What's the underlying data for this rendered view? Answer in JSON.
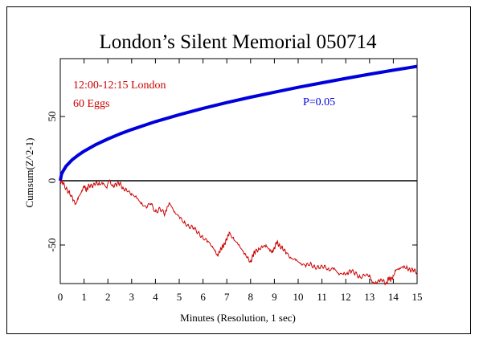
{
  "chart_data": {
    "type": "line",
    "title": "London’s Silent Memorial 050714",
    "xlabel": "Minutes (Resolution, 1 sec)",
    "ylabel": "Cumsum(Z^2-1)",
    "xlim": [
      0,
      15
    ],
    "ylim": [
      -80,
      95
    ],
    "x_ticks": [
      0,
      1,
      2,
      3,
      4,
      5,
      6,
      7,
      8,
      9,
      10,
      11,
      12,
      13,
      14,
      15
    ],
    "y_ticks": [
      -50,
      0,
      50
    ],
    "annotations": [
      "12:00-12:15 London",
      "60 Eggs",
      "P=0.05"
    ],
    "colors": {
      "cumsum": "#cc0000",
      "probability": "#0000dd",
      "zero": "#000000"
    },
    "series": [
      {
        "role": "probability envelope",
        "color": "#0000dd",
        "x": [
          0,
          0.05,
          0.1,
          0.25,
          0.5,
          0.75,
          1,
          1.5,
          2,
          2.5,
          3,
          4,
          5,
          6,
          7,
          8,
          9,
          10,
          11,
          12,
          13,
          14,
          15
        ],
        "values": [
          0,
          5,
          7,
          11.5,
          16.3,
          19.9,
          23,
          28.2,
          32.5,
          36.4,
          39.8,
          46,
          51.4,
          56.3,
          60.8,
          65,
          68.9,
          72.7,
          76.2,
          79.6,
          82.9,
          86,
          89
        ]
      },
      {
        "role": "cumulative deviation",
        "color": "#cc0000",
        "x": [
          0,
          0.1,
          0.25,
          0.4,
          0.55,
          0.65,
          0.75,
          0.9,
          1.0,
          1.1,
          1.2,
          1.35,
          1.5,
          1.65,
          1.8,
          1.95,
          2.05,
          2.2,
          2.35,
          2.5,
          2.65,
          2.8,
          3.0,
          3.2,
          3.4,
          3.6,
          3.8,
          4.0,
          4.2,
          4.4,
          4.5,
          4.6,
          4.8,
          5.0,
          5.2,
          5.4,
          5.6,
          5.8,
          6.0,
          6.2,
          6.4,
          6.5,
          6.6,
          6.7,
          6.8,
          6.9,
          7.0,
          7.1,
          7.3,
          7.5,
          7.7,
          7.85,
          8.0,
          8.1,
          8.2,
          8.35,
          8.5,
          8.65,
          8.8,
          8.9,
          9.0,
          9.1,
          9.2,
          9.35,
          9.5,
          9.7,
          9.9,
          10.1,
          10.3,
          10.5,
          10.7,
          10.9,
          11.1,
          11.3,
          11.5,
          11.7,
          11.9,
          12.05,
          12.2,
          12.4,
          12.6,
          12.8,
          13.0,
          13.1,
          13.25,
          13.4,
          13.55,
          13.7,
          13.8,
          13.9,
          14.0,
          14.1,
          14.25,
          14.4,
          14.55,
          14.7,
          14.85,
          15.0
        ],
        "values": [
          0,
          -2,
          -6,
          -10,
          -15,
          -18,
          -14,
          -8,
          -4,
          -8,
          -3,
          -5,
          -1,
          -3,
          -2,
          -5,
          0,
          -4,
          -3,
          -2,
          -6,
          -8,
          -10,
          -13,
          -18,
          -20,
          -18,
          -24,
          -22,
          -26,
          -20,
          -18,
          -24,
          -28,
          -33,
          -35,
          -37,
          -40,
          -45,
          -47,
          -51,
          -55,
          -58,
          -55,
          -52,
          -49,
          -46,
          -40,
          -46,
          -50,
          -55,
          -60,
          -63,
          -58,
          -55,
          -53,
          -52,
          -50,
          -54,
          -56,
          -52,
          -48,
          -50,
          -53,
          -56,
          -60,
          -62,
          -64,
          -66,
          -65,
          -67,
          -68,
          -66,
          -70,
          -68,
          -72,
          -73,
          -72,
          -70,
          -72,
          -75,
          -74,
          -73,
          -79,
          -80,
          -77,
          -78,
          -80,
          -76,
          -77,
          -74,
          -70,
          -68,
          -67,
          -68,
          -69,
          -70,
          -71
        ]
      }
    ]
  }
}
